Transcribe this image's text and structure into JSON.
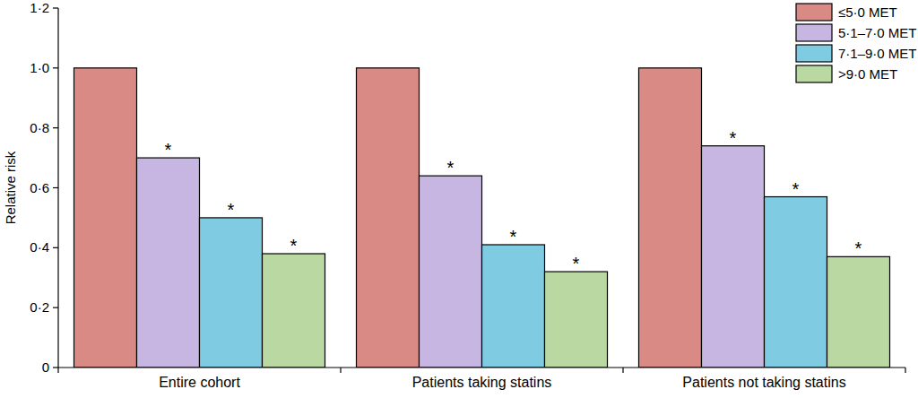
{
  "chart_data": {
    "type": "bar",
    "y_label": "Relative risk",
    "categories": [
      "Entire cohort",
      "Patients taking statins",
      "Patients not taking statins"
    ],
    "series": [
      {
        "name": "≤5·0 MET",
        "color": "#d98a85",
        "values": [
          1.0,
          1.0,
          1.0
        ],
        "annotations": [
          null,
          null,
          null
        ]
      },
      {
        "name": "5·1–7·0 MET",
        "color": "#c8b6e2",
        "values": [
          0.7,
          0.64,
          0.74
        ],
        "annotations": [
          "*",
          "*",
          "*"
        ]
      },
      {
        "name": "7·1–9·0 MET",
        "color": "#7ecbe2",
        "values": [
          0.5,
          0.41,
          0.57
        ],
        "annotations": [
          "*",
          "*",
          "*"
        ]
      },
      {
        "name": ">9·0 MET",
        "color": "#b9d8a2",
        "values": [
          0.38,
          0.32,
          0.37
        ],
        "annotations": [
          "*",
          "*",
          "*"
        ]
      }
    ],
    "ylim": [
      0,
      1.2
    ],
    "yticks": [
      0,
      {
        "value": 0.2,
        "label": "0·2"
      },
      {
        "value": 0.4,
        "label": "0·4"
      },
      {
        "value": 0.6,
        "label": "0·6"
      },
      {
        "value": 0.8,
        "label": "0·8"
      },
      {
        "value": 1.0,
        "label": "1·0"
      },
      {
        "value": 1.2,
        "label": "1·2"
      }
    ],
    "grid": false,
    "legend": "upper right"
  }
}
